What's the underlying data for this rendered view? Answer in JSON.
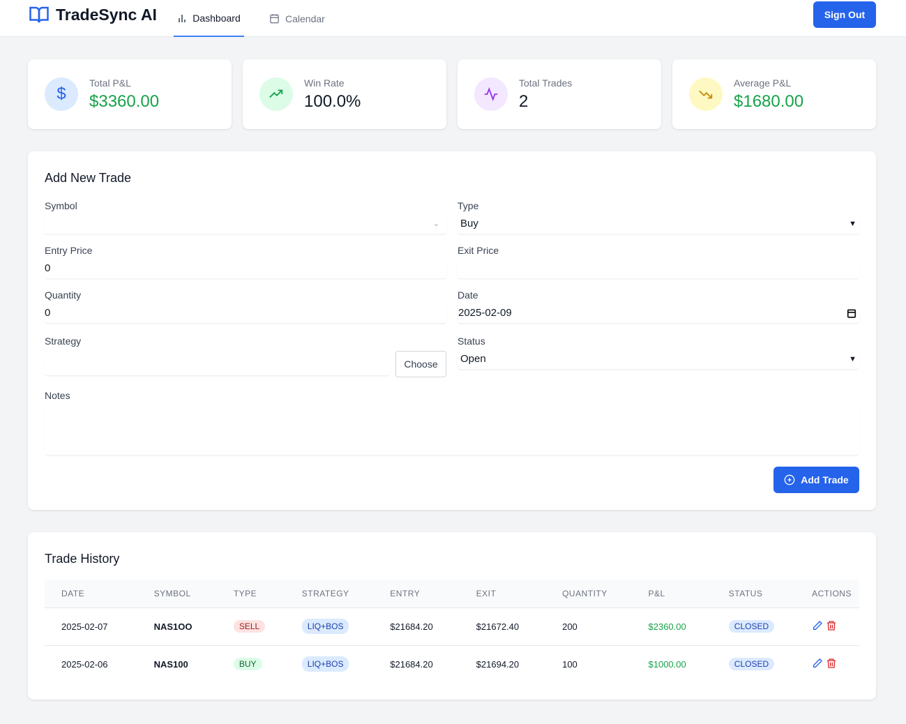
{
  "app": {
    "title": "TradeSync AI",
    "sign_out": "Sign Out"
  },
  "nav": {
    "tabs": [
      {
        "label": "Dashboard",
        "active": true
      },
      {
        "label": "Calendar",
        "active": false
      }
    ]
  },
  "stats": [
    {
      "label": "Total P&L",
      "value": "$3360.00",
      "color": "#16a34a",
      "bg": "#dbeafe"
    },
    {
      "label": "Win Rate",
      "value": "100.0%",
      "color": "#111827",
      "bg": "#dcfce7"
    },
    {
      "label": "Total Trades",
      "value": "2",
      "color": "#111827",
      "bg": "#f3e8ff"
    },
    {
      "label": "Average P&L",
      "value": "$1680.00",
      "color": "#16a34a",
      "bg": "#fef9c3"
    }
  ],
  "form": {
    "title": "Add New Trade",
    "symbol_label": "Symbol",
    "symbol_value": "",
    "type_label": "Type",
    "type_value": "Buy",
    "entry_label": "Entry Price",
    "entry_value": "0",
    "exit_label": "Exit Price",
    "exit_value": "",
    "quantity_label": "Quantity",
    "quantity_value": "0",
    "date_label": "Date",
    "date_value": "2025-02-09",
    "strategy_label": "Strategy",
    "strategy_value": "",
    "choose": "Choose",
    "status_label": "Status",
    "status_value": "Open",
    "notes_label": "Notes",
    "notes_value": "",
    "submit": "Add Trade"
  },
  "history": {
    "title": "Trade History",
    "columns": [
      "DATE",
      "SYMBOL",
      "TYPE",
      "STRATEGY",
      "ENTRY",
      "EXIT",
      "QUANTITY",
      "P&L",
      "STATUS",
      "ACTIONS"
    ],
    "rows": [
      {
        "date": "2025-02-07",
        "symbol": "NAS1OO",
        "type": "SELL",
        "strategy": "LIQ+BOS",
        "entry": "$21684.20",
        "exit": "$21672.40",
        "quantity": "200",
        "pnl": "$2360.00",
        "status": "CLOSED"
      },
      {
        "date": "2025-02-06",
        "symbol": "NAS100",
        "type": "BUY",
        "strategy": "LIQ+BOS",
        "entry": "$21684.20",
        "exit": "$21694.20",
        "quantity": "100",
        "pnl": "$1000.00",
        "status": "CLOSED"
      }
    ]
  }
}
